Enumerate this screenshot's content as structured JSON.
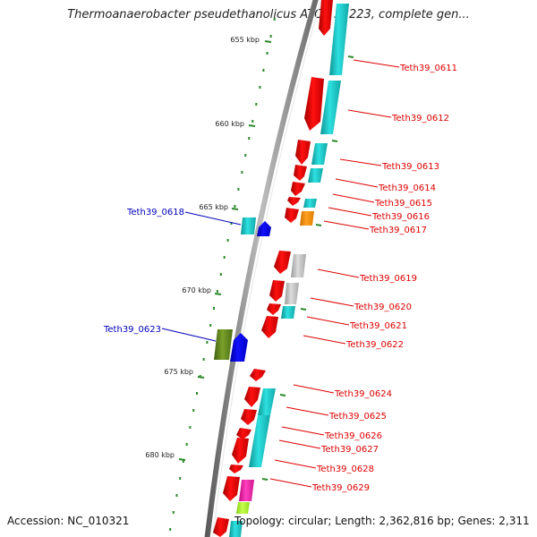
{
  "title": "Thermoanaerobacter pseudethanolicus ATCC 33223, complete gen...",
  "accession": "Accession: NC_010321",
  "topology": "Topology: circular; Length: 2,362,816 bp; Genes: 2,311",
  "colors": {
    "red": "#ff0000",
    "cyan": "#19cccc",
    "gray": "#c8c8c8",
    "orange": "#ff9a19",
    "blue": "#0000ee",
    "olive": "#668f1f",
    "magenta": "#ff2cb0",
    "lime": "#b0ff35",
    "tick": "#2b8a2b",
    "backbone": "#8c8c8c",
    "label_red": "#dd0000",
    "label_blue": "#0000bb"
  },
  "scale_labels": [
    "655 kbp",
    "660 kbp",
    "665 kbp",
    "670 kbp",
    "675 kbp",
    "680 kbp"
  ],
  "labels_right": [
    "Teth39_0611",
    "Teth39_0612",
    "Teth39_0613",
    "Teth39_0614",
    "Teth39_0615",
    "Teth39_0616",
    "Teth39_0617",
    "Teth39_0619",
    "Teth39_0620",
    "Teth39_0621",
    "Teth39_0622",
    "Teth39_0624",
    "Teth39_0625",
    "Teth39_0626",
    "Teth39_0627",
    "Teth39_0628",
    "Teth39_0629"
  ],
  "labels_left": [
    "Teth39_0618",
    "Teth39_0623"
  ]
}
